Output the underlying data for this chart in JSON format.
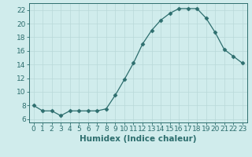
{
  "x": [
    0,
    1,
    2,
    3,
    4,
    5,
    6,
    7,
    8,
    9,
    10,
    11,
    12,
    13,
    14,
    15,
    16,
    17,
    18,
    19,
    20,
    21,
    22,
    23
  ],
  "y": [
    8.0,
    7.2,
    7.2,
    6.5,
    7.2,
    7.2,
    7.2,
    7.2,
    7.5,
    9.5,
    11.8,
    14.2,
    17.0,
    19.0,
    20.5,
    21.5,
    22.2,
    22.2,
    22.2,
    20.8,
    18.7,
    16.2,
    15.2,
    14.2
  ],
  "line_color": "#2d6e6e",
  "marker": "D",
  "marker_size": 2.5,
  "bg_color": "#d0ecec",
  "grid_color": "#b8d8d8",
  "xlabel": "Humidex (Indice chaleur)",
  "xlim": [
    -0.5,
    23.5
  ],
  "ylim": [
    5.5,
    23.0
  ],
  "yticks": [
    6,
    8,
    10,
    12,
    14,
    16,
    18,
    20,
    22
  ],
  "xticks": [
    0,
    1,
    2,
    3,
    4,
    5,
    6,
    7,
    8,
    9,
    10,
    11,
    12,
    13,
    14,
    15,
    16,
    17,
    18,
    19,
    20,
    21,
    22,
    23
  ],
  "tick_color": "#2d6e6e",
  "label_fontsize": 6.5,
  "xlabel_fontsize": 7.5
}
